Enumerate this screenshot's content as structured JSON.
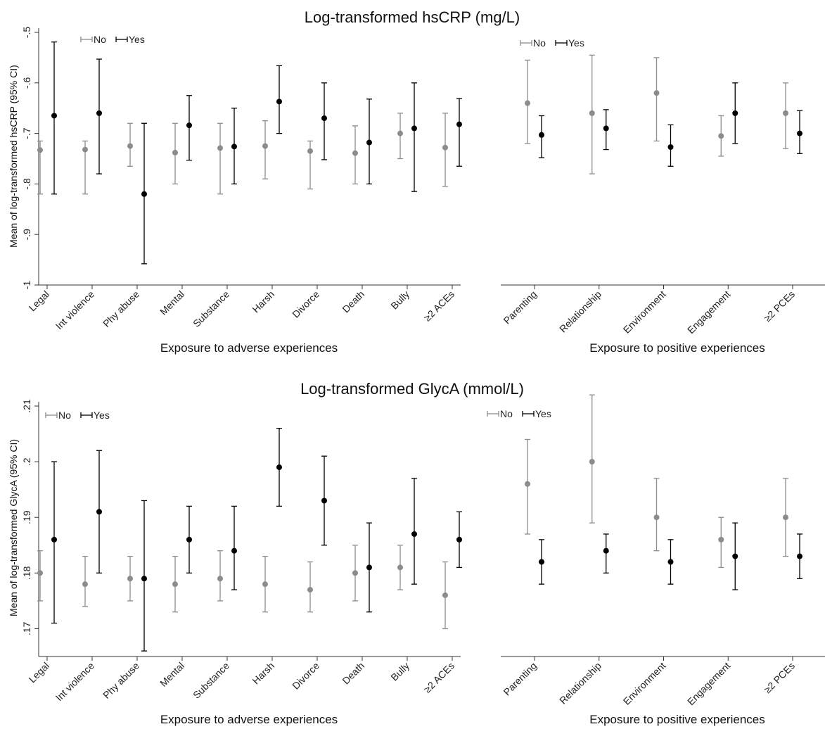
{
  "chart_data": [
    {
      "type": "scatter",
      "title": "Log-transformed hsCRP (mg/L)",
      "subtitle": "",
      "xlabel": "Exposure to adverse experiences",
      "ylabel": "Mean of log-transformed hsCRP (95% CI)",
      "ylim": [
        -1.0,
        -0.5
      ],
      "yticks": [
        -1,
        -0.9,
        -0.8,
        -0.7,
        -0.6,
        -0.5
      ],
      "ytick_labels": [
        "-1",
        "-.9",
        "-.8",
        "-.7",
        "-.6",
        "-.5"
      ],
      "grid": false,
      "legend_position": "top-left",
      "categories": [
        "Legal",
        "Int violence",
        "Phy abuse",
        "Mental",
        "Substance",
        "Harsh",
        "Divorce",
        "Death",
        "Bully",
        "≥2 ACEs"
      ],
      "series": [
        {
          "name": "No",
          "color": "#8c8c8c",
          "values": [
            -0.733,
            -0.732,
            -0.725,
            -0.738,
            -0.729,
            -0.725,
            -0.735,
            -0.739,
            -0.7,
            -0.728
          ],
          "lower": [
            -0.82,
            -0.82,
            -0.765,
            -0.8,
            -0.82,
            -0.79,
            -0.81,
            -0.8,
            -0.75,
            -0.805
          ],
          "upper": [
            -0.715,
            -0.715,
            -0.68,
            -0.68,
            -0.68,
            -0.675,
            -0.715,
            -0.685,
            -0.66,
            -0.66
          ]
        },
        {
          "name": "Yes",
          "color": "#000000",
          "values": [
            -0.665,
            -0.66,
            -0.82,
            -0.684,
            -0.726,
            -0.637,
            -0.67,
            -0.718,
            -0.69,
            -0.682
          ],
          "lower": [
            -0.82,
            -0.78,
            -0.958,
            -0.753,
            -0.8,
            -0.7,
            -0.752,
            -0.8,
            -0.815,
            -0.765
          ],
          "upper": [
            -0.519,
            -0.553,
            -0.68,
            -0.625,
            -0.65,
            -0.566,
            -0.6,
            -0.632,
            -0.6,
            -0.631
          ]
        }
      ]
    },
    {
      "type": "scatter",
      "title": "",
      "xlabel": "Exposure to positive experiences",
      "ylabel": "",
      "ylim": [
        -1.0,
        -0.5
      ],
      "grid": false,
      "legend_position": "top-left",
      "categories": [
        "Parenting",
        "Relationship",
        "Environment",
        "Engagement",
        "≥2 PCEs"
      ],
      "series": [
        {
          "name": "No",
          "color": "#8c8c8c",
          "values": [
            -0.64,
            -0.66,
            -0.62,
            -0.705,
            -0.66
          ],
          "lower": [
            -0.72,
            -0.78,
            -0.715,
            -0.745,
            -0.73
          ],
          "upper": [
            -0.555,
            -0.545,
            -0.55,
            -0.665,
            -0.6
          ]
        },
        {
          "name": "Yes",
          "color": "#000000",
          "values": [
            -0.703,
            -0.69,
            -0.727,
            -0.66,
            -0.7
          ],
          "lower": [
            -0.748,
            -0.732,
            -0.765,
            -0.72,
            -0.74
          ],
          "upper": [
            -0.665,
            -0.653,
            -0.683,
            -0.6,
            -0.655
          ]
        }
      ]
    },
    {
      "type": "scatter",
      "title": "Log-transformed GlycA (mmol/L)",
      "subtitle": "",
      "xlabel": "Exposure to adverse experiences",
      "ylabel": "Mean of log-transformed GlycA (95% CI)",
      "ylim": [
        0.165,
        0.21
      ],
      "yticks": [
        0.17,
        0.18,
        0.19,
        0.2,
        0.21
      ],
      "ytick_labels": [
        ".17",
        ".18",
        ".19",
        ".2",
        ".21"
      ],
      "grid": false,
      "legend_position": "top-left",
      "categories": [
        "Legal",
        "Int violence",
        "Phy abuse",
        "Mental",
        "Substance",
        "Harsh",
        "Divorce",
        "Death",
        "Bully",
        "≥2 ACEs"
      ],
      "series": [
        {
          "name": "No",
          "color": "#8c8c8c",
          "values": [
            0.18,
            0.178,
            0.179,
            0.178,
            0.179,
            0.178,
            0.177,
            0.18,
            0.181,
            0.176
          ],
          "lower": [
            0.175,
            0.174,
            0.175,
            0.173,
            0.175,
            0.173,
            0.173,
            0.175,
            0.177,
            0.17
          ],
          "upper": [
            0.184,
            0.183,
            0.183,
            0.183,
            0.184,
            0.183,
            0.182,
            0.185,
            0.185,
            0.182
          ]
        },
        {
          "name": "Yes",
          "color": "#000000",
          "values": [
            0.186,
            0.191,
            0.179,
            0.186,
            0.184,
            0.199,
            0.193,
            0.181,
            0.187,
            0.186
          ],
          "lower": [
            0.171,
            0.18,
            0.166,
            0.18,
            0.177,
            0.192,
            0.185,
            0.173,
            0.178,
            0.181
          ],
          "upper": [
            0.2,
            0.202,
            0.193,
            0.192,
            0.192,
            0.206,
            0.201,
            0.189,
            0.197,
            0.191
          ]
        }
      ]
    },
    {
      "type": "scatter",
      "title": "",
      "xlabel": "Exposure to positive experiences",
      "ylabel": "",
      "ylim": [
        0.165,
        0.21
      ],
      "grid": false,
      "legend_position": "top-left",
      "categories": [
        "Parenting",
        "Relationship",
        "Environment",
        "Engagement",
        "≥2 PCEs"
      ],
      "series": [
        {
          "name": "No",
          "color": "#8c8c8c",
          "values": [
            0.196,
            0.2,
            0.19,
            0.186,
            0.19
          ],
          "lower": [
            0.187,
            0.189,
            0.184,
            0.181,
            0.183
          ],
          "upper": [
            0.204,
            0.212,
            0.197,
            0.19,
            0.197
          ]
        },
        {
          "name": "Yes",
          "color": "#000000",
          "values": [
            0.182,
            0.184,
            0.182,
            0.183,
            0.183
          ],
          "lower": [
            0.178,
            0.18,
            0.178,
            0.177,
            0.179
          ],
          "upper": [
            0.186,
            0.187,
            0.186,
            0.189,
            0.187
          ]
        }
      ]
    }
  ]
}
